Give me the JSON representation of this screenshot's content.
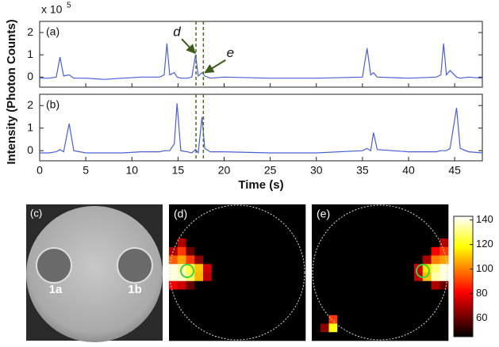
{
  "chart_data": [
    {
      "type": "line",
      "panel_label": "(a)",
      "ylabel": "Intensity (Photon Counts)",
      "y_multiplier": "x 10",
      "y_multiplier_exponent": "5",
      "xlim": [
        0,
        48
      ],
      "xticks": [
        0,
        5,
        10,
        15,
        20,
        25,
        30,
        35,
        40,
        45
      ],
      "ylim": [
        -0.45,
        2.5
      ],
      "yticks": [
        0,
        1,
        2
      ],
      "x": [
        0,
        1,
        1.8,
        2.2,
        2.6,
        3.2,
        3.7,
        5,
        7,
        9,
        11,
        13,
        13.5,
        13.8,
        14.1,
        14.6,
        14.9,
        15.3,
        16,
        16.5,
        16.9,
        17.2,
        17.6,
        17.9,
        18.5,
        20,
        25,
        30,
        35,
        35.5,
        35.9,
        36.2,
        36.6,
        40,
        43,
        43.5,
        43.8,
        44.1,
        44.5,
        45.2,
        45.6,
        46.5,
        48
      ],
      "series": [
        {
          "color": "#4a5fd6",
          "values": [
            -0.05,
            -0.05,
            0,
            0.9,
            0.05,
            0.1,
            -0.05,
            -0.05,
            -0.1,
            -0.05,
            0,
            0,
            0.1,
            1.5,
            0.1,
            0.2,
            0,
            -0.05,
            -0.05,
            0,
            1.0,
            0.05,
            0.2,
            0.05,
            -0.05,
            0,
            -0.05,
            -0.05,
            0,
            1.3,
            0.1,
            0.2,
            0,
            -0.05,
            0,
            0.1,
            1.5,
            0.1,
            0.3,
            0,
            -0.05,
            0,
            -0.05
          ]
        }
      ],
      "vlines": [
        16.95,
        17.75
      ],
      "vline_color": "#4f6b20",
      "annotations": [
        {
          "text": "d",
          "x": 16.95,
          "y": 1.0
        },
        {
          "text": "e",
          "x": 17.75,
          "y": 0.2
        }
      ]
    },
    {
      "type": "line",
      "panel_label": "(b)",
      "xlabel": "Time (s)",
      "xlim": [
        0,
        48
      ],
      "xticks": [
        0,
        5,
        10,
        15,
        20,
        25,
        30,
        35,
        40,
        45
      ],
      "ylim": [
        -0.45,
        2.5
      ],
      "yticks": [
        0,
        1,
        2
      ],
      "x": [
        0,
        1,
        1.8,
        2.2,
        2.6,
        3.2,
        3.7,
        5,
        7,
        9,
        11,
        13,
        13.5,
        13.8,
        14.1,
        14.6,
        14.9,
        15.3,
        16,
        16.5,
        16.9,
        17.2,
        17.6,
        17.9,
        18.5,
        20,
        25,
        30,
        35,
        35.5,
        35.9,
        36.2,
        36.6,
        40,
        43,
        43.5,
        43.8,
        44.1,
        44.5,
        45.2,
        45.6,
        46.5,
        48
      ],
      "series": [
        {
          "color": "#4a5fd6",
          "values": [
            -0.1,
            -0.1,
            -0.05,
            0.05,
            -0.05,
            1.2,
            0,
            -0.1,
            -0.1,
            -0.1,
            -0.05,
            -0.05,
            0,
            0,
            0,
            0.3,
            2.1,
            0,
            -0.05,
            -0.1,
            0.05,
            -0.1,
            1.5,
            0.1,
            -0.05,
            -0.05,
            -0.1,
            -0.1,
            0,
            0.1,
            0,
            0.8,
            0.05,
            -0.05,
            -0.05,
            0,
            0,
            0,
            0.1,
            1.9,
            0.1,
            -0.05,
            -0.1
          ]
        }
      ],
      "vlines": [
        16.95,
        17.75
      ],
      "vline_color": "#4f6b20"
    },
    {
      "type": "image",
      "panel_label": "(c)",
      "labels": [
        "1a",
        "1b"
      ]
    },
    {
      "type": "heatmap",
      "panel_label": "(d)",
      "colormap": "hot",
      "clim": [
        45,
        143
      ],
      "z": [
        [
          45,
          45,
          45,
          45,
          45,
          45,
          45,
          45,
          45,
          45,
          45,
          45,
          45,
          45,
          45,
          45
        ],
        [
          45,
          45,
          45,
          45,
          45,
          45,
          45,
          45,
          45,
          45,
          45,
          45,
          45,
          45,
          45,
          45
        ],
        [
          45,
          45,
          45,
          45,
          45,
          45,
          45,
          45,
          45,
          45,
          45,
          45,
          45,
          45,
          45,
          45
        ],
        [
          45,
          45,
          45,
          45,
          45,
          45,
          45,
          45,
          45,
          45,
          45,
          45,
          45,
          45,
          45,
          45
        ],
        [
          45,
          70,
          45,
          45,
          45,
          45,
          45,
          45,
          45,
          45,
          45,
          45,
          45,
          45,
          45,
          45
        ],
        [
          70,
          90,
          60,
          45,
          45,
          45,
          45,
          45,
          45,
          45,
          45,
          45,
          45,
          45,
          45,
          45
        ],
        [
          95,
          105,
          90,
          65,
          45,
          45,
          45,
          45,
          45,
          45,
          45,
          45,
          45,
          45,
          45,
          45
        ],
        [
          140,
          135,
          125,
          110,
          75,
          45,
          45,
          45,
          45,
          45,
          45,
          45,
          45,
          45,
          45,
          45
        ],
        [
          140,
          138,
          128,
          108,
          72,
          45,
          45,
          45,
          45,
          45,
          45,
          45,
          45,
          45,
          45,
          45
        ],
        [
          80,
          75,
          60,
          45,
          45,
          45,
          45,
          45,
          45,
          45,
          45,
          45,
          45,
          45,
          45,
          45
        ],
        [
          45,
          45,
          45,
          45,
          45,
          45,
          45,
          45,
          45,
          45,
          45,
          45,
          45,
          45,
          45,
          45
        ],
        [
          45,
          45,
          45,
          45,
          45,
          45,
          45,
          45,
          45,
          45,
          45,
          45,
          45,
          45,
          45,
          45
        ],
        [
          45,
          45,
          45,
          45,
          45,
          45,
          45,
          45,
          45,
          45,
          45,
          45,
          45,
          45,
          45,
          45
        ],
        [
          45,
          45,
          45,
          45,
          45,
          45,
          45,
          45,
          45,
          45,
          45,
          45,
          45,
          45,
          45,
          45
        ],
        [
          45,
          45,
          45,
          45,
          45,
          45,
          45,
          45,
          45,
          45,
          45,
          45,
          45,
          45,
          45,
          45
        ],
        [
          45,
          45,
          45,
          45,
          45,
          45,
          45,
          45,
          45,
          45,
          45,
          45,
          45,
          45,
          45,
          45
        ]
      ]
    },
    {
      "type": "heatmap",
      "panel_label": "(e)",
      "colormap": "hot",
      "clim": [
        45,
        143
      ],
      "colorbar_ticks": [
        60,
        80,
        100,
        120,
        140
      ],
      "z": [
        [
          45,
          45,
          45,
          45,
          45,
          45,
          45,
          45,
          45,
          45,
          45,
          45,
          45,
          45,
          45,
          45
        ],
        [
          45,
          45,
          45,
          45,
          45,
          45,
          45,
          45,
          45,
          45,
          45,
          45,
          45,
          45,
          45,
          45
        ],
        [
          45,
          45,
          45,
          45,
          45,
          45,
          45,
          45,
          45,
          45,
          45,
          45,
          45,
          45,
          45,
          45
        ],
        [
          45,
          45,
          45,
          45,
          45,
          45,
          45,
          45,
          45,
          45,
          45,
          45,
          45,
          45,
          45,
          45
        ],
        [
          45,
          45,
          45,
          45,
          45,
          45,
          45,
          45,
          45,
          45,
          45,
          45,
          45,
          45,
          45,
          70
        ],
        [
          45,
          45,
          45,
          45,
          45,
          45,
          45,
          45,
          45,
          45,
          45,
          45,
          45,
          45,
          80,
          90
        ],
        [
          45,
          45,
          45,
          45,
          45,
          45,
          45,
          45,
          45,
          45,
          45,
          45,
          45,
          70,
          100,
          105
        ],
        [
          45,
          45,
          45,
          45,
          45,
          45,
          45,
          45,
          45,
          45,
          45,
          45,
          75,
          115,
          130,
          140
        ],
        [
          45,
          45,
          45,
          45,
          45,
          45,
          45,
          45,
          45,
          45,
          45,
          45,
          72,
          110,
          135,
          140
        ],
        [
          45,
          45,
          45,
          45,
          45,
          45,
          45,
          45,
          45,
          45,
          45,
          45,
          45,
          45,
          70,
          60
        ],
        [
          45,
          45,
          45,
          45,
          45,
          45,
          45,
          45,
          45,
          45,
          45,
          45,
          45,
          45,
          45,
          45
        ],
        [
          45,
          45,
          45,
          45,
          45,
          45,
          45,
          45,
          45,
          45,
          45,
          45,
          45,
          45,
          45,
          45
        ],
        [
          45,
          45,
          45,
          45,
          45,
          45,
          45,
          45,
          45,
          45,
          45,
          45,
          45,
          45,
          45,
          45
        ],
        [
          45,
          45,
          90,
          45,
          45,
          45,
          45,
          45,
          45,
          45,
          45,
          45,
          45,
          45,
          45,
          45
        ],
        [
          45,
          65,
          120,
          45,
          45,
          45,
          45,
          45,
          45,
          45,
          45,
          45,
          45,
          45,
          45,
          45
        ],
        [
          45,
          45,
          45,
          45,
          45,
          45,
          45,
          45,
          45,
          45,
          45,
          45,
          45,
          45,
          45,
          45
        ]
      ]
    }
  ]
}
